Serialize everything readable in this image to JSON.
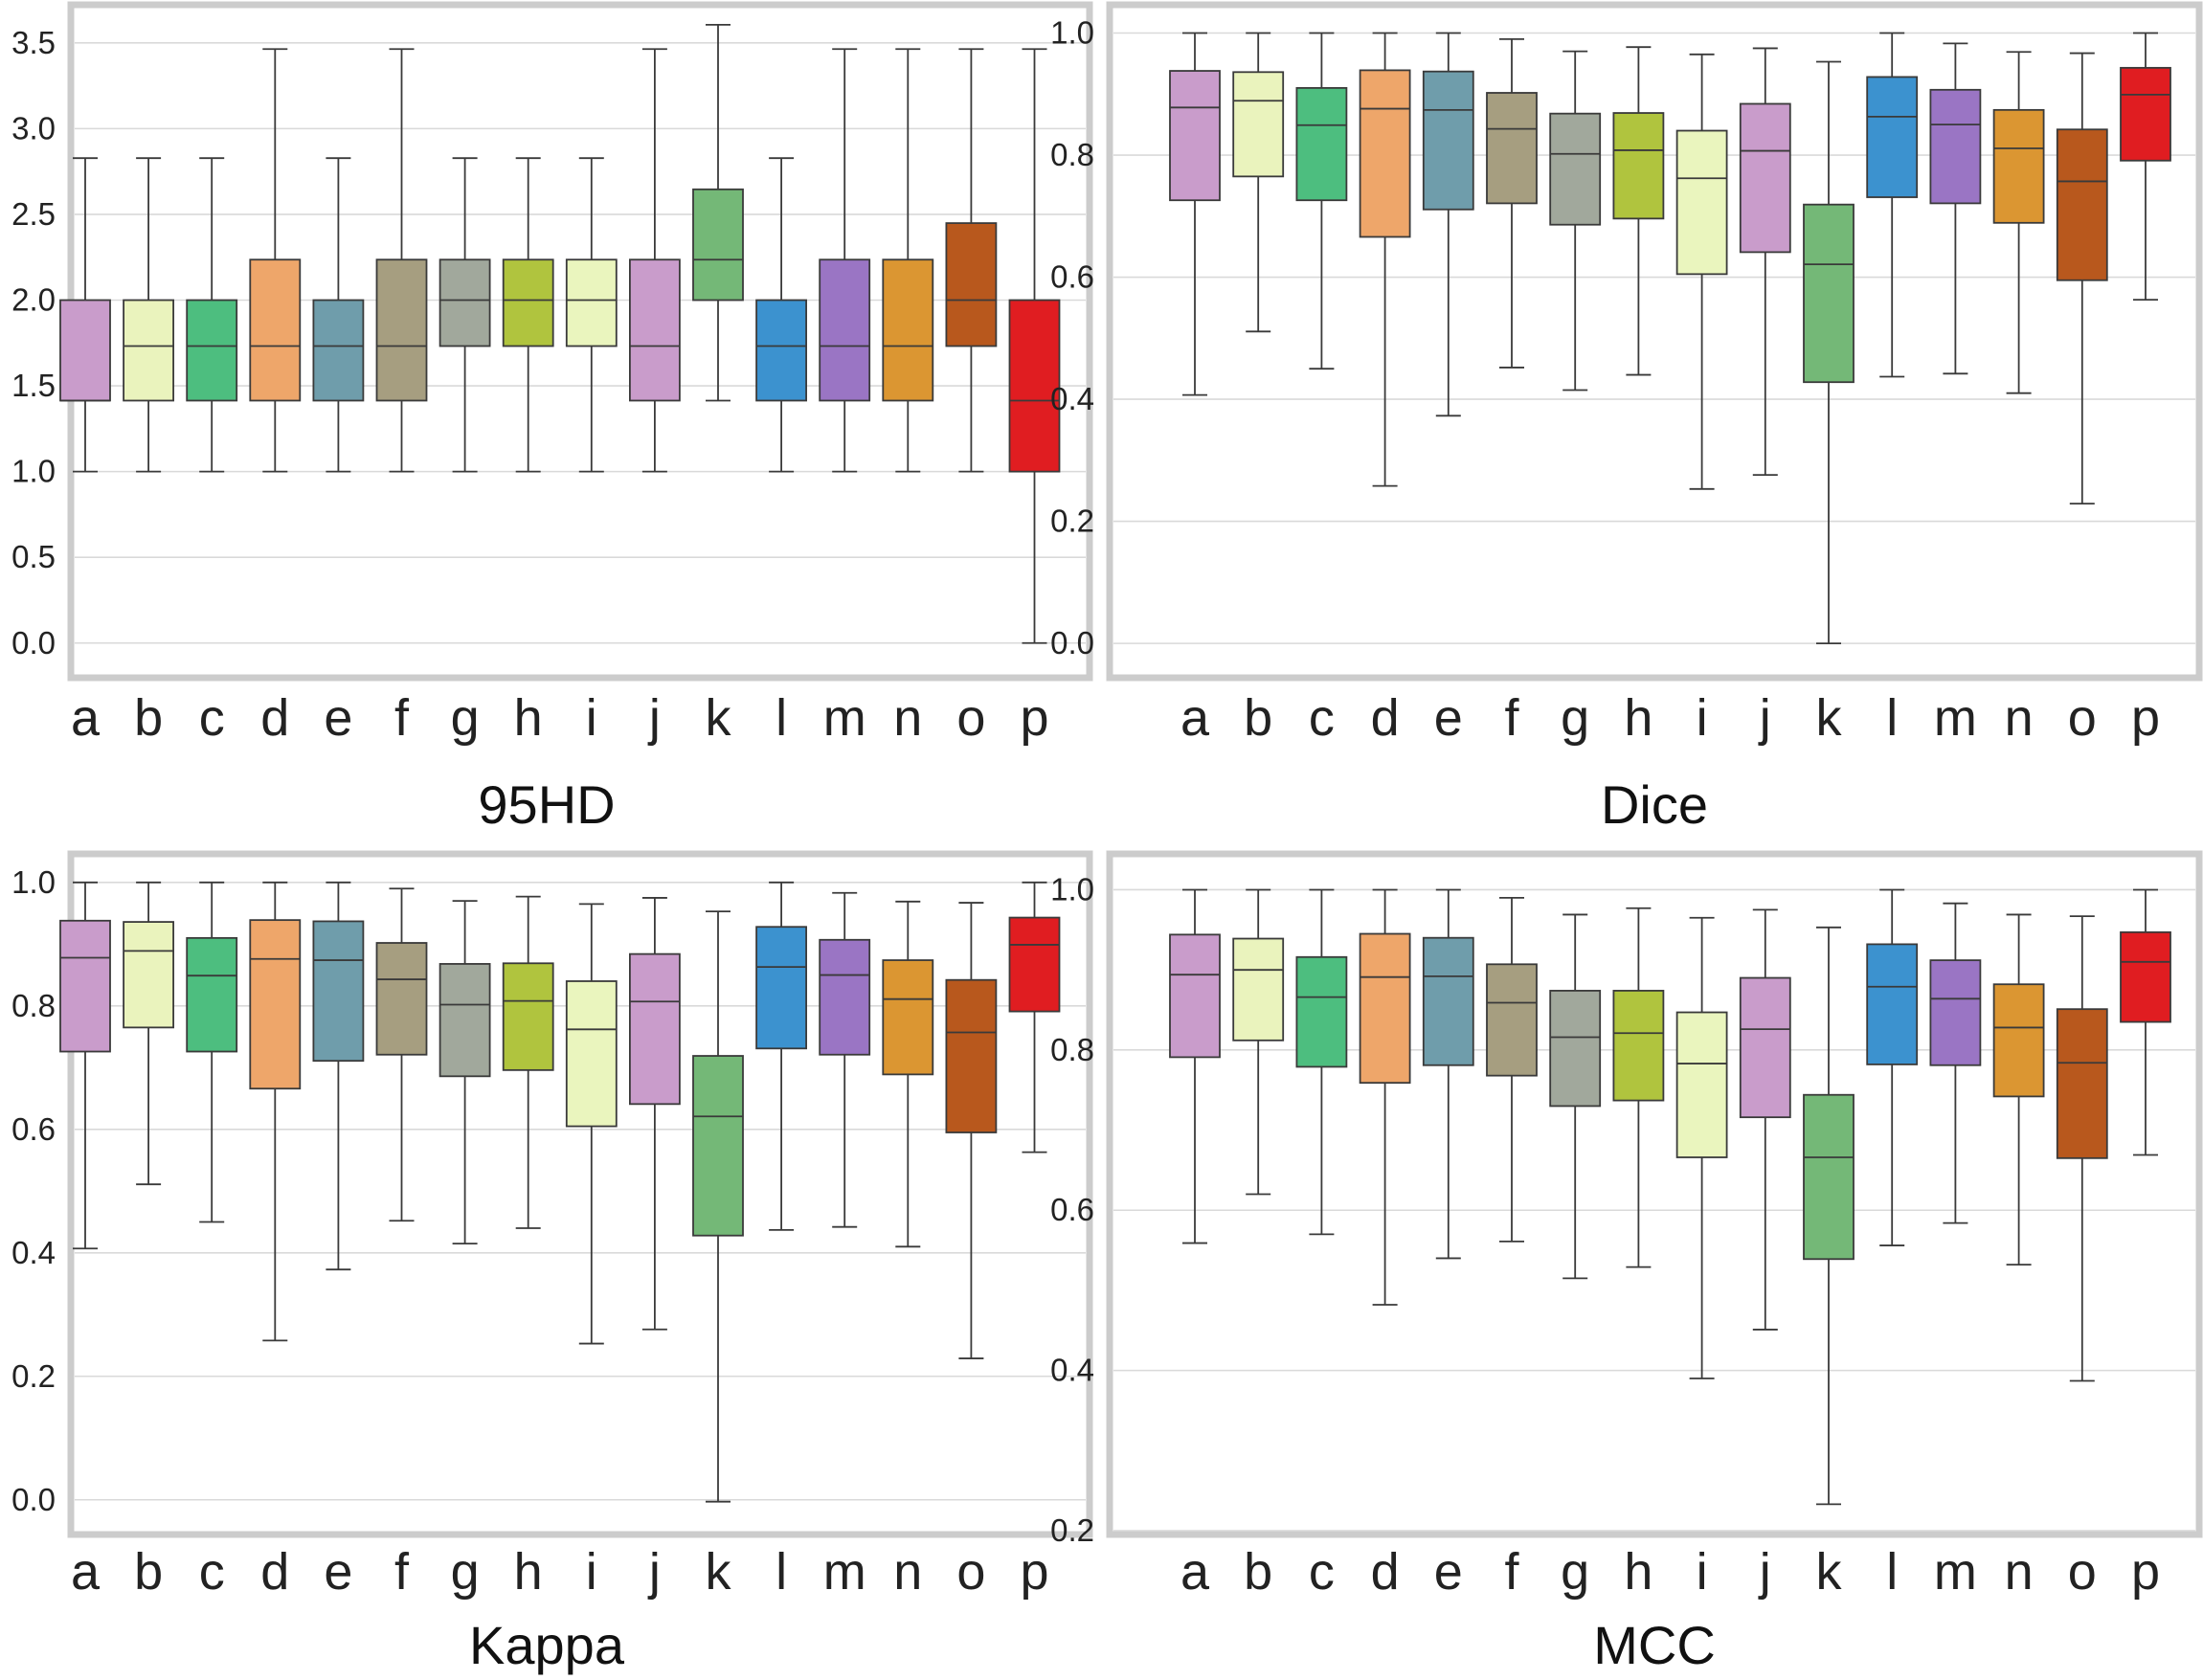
{
  "figure": {
    "categories": [
      "a",
      "b",
      "c",
      "d",
      "e",
      "f",
      "g",
      "h",
      "i",
      "j",
      "k",
      "l",
      "m",
      "n",
      "o",
      "p"
    ],
    "colors": [
      "#c99ccb",
      "#eaf3bd",
      "#4dbe7f",
      "#eea66a",
      "#6f9dab",
      "#a69e80",
      "#a1a89c",
      "#b0c43e",
      "#eaf5be",
      "#c99ccb",
      "#74b877",
      "#3c92cf",
      "#9a75c4",
      "#db9632",
      "#b8581d",
      "#e01d21"
    ],
    "box_edge_color": "#3a3a3a",
    "grid_color": "#d9d9d9",
    "frame_color": "#cccccc"
  },
  "chart_data": [
    {
      "type": "box",
      "title": "95HD",
      "ylim": [
        -0.18,
        3.7
      ],
      "yticks": [
        0.0,
        0.5,
        1.0,
        1.5,
        2.0,
        2.5,
        3.0,
        3.5
      ],
      "ytick_labels": [
        "0.0",
        "0.5",
        "1.0",
        "1.5",
        "2.0",
        "2.5",
        "3.0",
        "3.5"
      ],
      "grid": true,
      "boxes": [
        {
          "min": 1.0,
          "q1": 1.414,
          "median": 1.414,
          "q3": 2.0,
          "max": 2.828
        },
        {
          "min": 1.0,
          "q1": 1.414,
          "median": 1.732,
          "q3": 2.0,
          "max": 2.828
        },
        {
          "min": 1.0,
          "q1": 1.414,
          "median": 1.732,
          "q3": 2.0,
          "max": 2.828
        },
        {
          "min": 1.0,
          "q1": 1.414,
          "median": 1.732,
          "q3": 2.236,
          "max": 3.464
        },
        {
          "min": 1.0,
          "q1": 1.414,
          "median": 1.732,
          "q3": 2.0,
          "max": 2.828
        },
        {
          "min": 1.0,
          "q1": 1.414,
          "median": 1.732,
          "q3": 2.236,
          "max": 3.464
        },
        {
          "min": 1.0,
          "q1": 1.732,
          "median": 2.0,
          "q3": 2.236,
          "max": 2.828
        },
        {
          "min": 1.0,
          "q1": 1.732,
          "median": 2.0,
          "q3": 2.236,
          "max": 2.828
        },
        {
          "min": 1.0,
          "q1": 1.732,
          "median": 2.0,
          "q3": 2.236,
          "max": 2.828
        },
        {
          "min": 1.0,
          "q1": 1.414,
          "median": 1.732,
          "q3": 2.236,
          "max": 3.464
        },
        {
          "min": 1.414,
          "q1": 2.0,
          "median": 2.236,
          "q3": 2.646,
          "max": 3.606
        },
        {
          "min": 1.0,
          "q1": 1.414,
          "median": 1.732,
          "q3": 2.0,
          "max": 2.828
        },
        {
          "min": 1.0,
          "q1": 1.414,
          "median": 1.732,
          "q3": 2.236,
          "max": 3.464
        },
        {
          "min": 1.0,
          "q1": 1.414,
          "median": 1.732,
          "q3": 2.236,
          "max": 3.464
        },
        {
          "min": 1.0,
          "q1": 1.732,
          "median": 2.0,
          "q3": 2.449,
          "max": 3.464
        },
        {
          "min": 0.0,
          "q1": 1.0,
          "median": 1.414,
          "q3": 2.0,
          "max": 3.464
        }
      ]
    },
    {
      "type": "box",
      "title": "Dice",
      "ylim": [
        -0.05,
        1.04
      ],
      "yticks": [
        0.0,
        0.2,
        0.4,
        0.6,
        0.8,
        1.0
      ],
      "ytick_labels": [
        "0.0",
        "0.2",
        "0.4",
        "0.6",
        "0.8",
        "1.0"
      ],
      "grid": true,
      "boxes": [
        {
          "min": 0.407,
          "q1": 0.726,
          "median": 0.878,
          "q3": 0.938,
          "max": 1.0
        },
        {
          "min": 0.511,
          "q1": 0.765,
          "median": 0.889,
          "q3": 0.936,
          "max": 1.0
        },
        {
          "min": 0.45,
          "q1": 0.726,
          "median": 0.849,
          "q3": 0.91,
          "max": 1.0
        },
        {
          "min": 0.258,
          "q1": 0.666,
          "median": 0.876,
          "q3": 0.939,
          "max": 1.0
        },
        {
          "min": 0.373,
          "q1": 0.711,
          "median": 0.874,
          "q3": 0.937,
          "max": 1.0
        },
        {
          "min": 0.452,
          "q1": 0.721,
          "median": 0.843,
          "q3": 0.902,
          "max": 0.99
        },
        {
          "min": 0.415,
          "q1": 0.686,
          "median": 0.802,
          "q3": 0.868,
          "max": 0.97
        },
        {
          "min": 0.44,
          "q1": 0.696,
          "median": 0.808,
          "q3": 0.869,
          "max": 0.977
        },
        {
          "min": 0.253,
          "q1": 0.605,
          "median": 0.762,
          "q3": 0.84,
          "max": 0.965
        },
        {
          "min": 0.276,
          "q1": 0.641,
          "median": 0.807,
          "q3": 0.884,
          "max": 0.975
        },
        {
          "min": 0.0,
          "q1": 0.428,
          "median": 0.621,
          "q3": 0.719,
          "max": 0.953
        },
        {
          "min": 0.437,
          "q1": 0.731,
          "median": 0.863,
          "q3": 0.928,
          "max": 1.0
        },
        {
          "min": 0.442,
          "q1": 0.721,
          "median": 0.85,
          "q3": 0.907,
          "max": 0.983
        },
        {
          "min": 0.41,
          "q1": 0.689,
          "median": 0.811,
          "q3": 0.874,
          "max": 0.969
        },
        {
          "min": 0.229,
          "q1": 0.595,
          "median": 0.757,
          "q3": 0.842,
          "max": 0.967
        },
        {
          "min": 0.563,
          "q1": 0.791,
          "median": 0.899,
          "q3": 0.943,
          "max": 1.0
        }
      ]
    },
    {
      "type": "box",
      "title": "Kappa",
      "ylim": [
        -0.05,
        1.04
      ],
      "yticks": [
        0.0,
        0.2,
        0.4,
        0.6,
        0.8,
        1.0
      ],
      "ytick_labels": [
        "0.0",
        "0.2",
        "0.4",
        "0.6",
        "0.8",
        "1.0"
      ],
      "grid": true,
      "boxes": [
        {
          "min": 0.407,
          "q1": 0.726,
          "median": 0.878,
          "q3": 0.938,
          "max": 1.0
        },
        {
          "min": 0.511,
          "q1": 0.765,
          "median": 0.889,
          "q3": 0.936,
          "max": 1.0
        },
        {
          "min": 0.45,
          "q1": 0.726,
          "median": 0.849,
          "q3": 0.91,
          "max": 1.0
        },
        {
          "min": 0.258,
          "q1": 0.666,
          "median": 0.876,
          "q3": 0.939,
          "max": 1.0
        },
        {
          "min": 0.373,
          "q1": 0.711,
          "median": 0.874,
          "q3": 0.937,
          "max": 1.0
        },
        {
          "min": 0.452,
          "q1": 0.721,
          "median": 0.843,
          "q3": 0.902,
          "max": 0.99
        },
        {
          "min": 0.415,
          "q1": 0.686,
          "median": 0.802,
          "q3": 0.868,
          "max": 0.97
        },
        {
          "min": 0.44,
          "q1": 0.696,
          "median": 0.808,
          "q3": 0.869,
          "max": 0.977
        },
        {
          "min": 0.253,
          "q1": 0.605,
          "median": 0.762,
          "q3": 0.84,
          "max": 0.965
        },
        {
          "min": 0.276,
          "q1": 0.641,
          "median": 0.807,
          "q3": 0.884,
          "max": 0.975
        },
        {
          "min": -0.003,
          "q1": 0.428,
          "median": 0.621,
          "q3": 0.719,
          "max": 0.953
        },
        {
          "min": 0.437,
          "q1": 0.731,
          "median": 0.863,
          "q3": 0.928,
          "max": 1.0
        },
        {
          "min": 0.442,
          "q1": 0.721,
          "median": 0.85,
          "q3": 0.907,
          "max": 0.983
        },
        {
          "min": 0.41,
          "q1": 0.689,
          "median": 0.811,
          "q3": 0.874,
          "max": 0.969
        },
        {
          "min": 0.229,
          "q1": 0.595,
          "median": 0.757,
          "q3": 0.842,
          "max": 0.967
        },
        {
          "min": 0.563,
          "q1": 0.791,
          "median": 0.899,
          "q3": 0.943,
          "max": 1.0
        }
      ]
    },
    {
      "type": "box",
      "title": "MCC",
      "ylim": [
        0.2,
        1.04
      ],
      "yticks": [
        0.2,
        0.4,
        0.6,
        0.8,
        1.0
      ],
      "ytick_labels": [
        "0.2",
        "0.4",
        "0.6",
        "0.8",
        "1.0"
      ],
      "grid": true,
      "boxes": [
        {
          "min": 0.559,
          "q1": 0.791,
          "median": 0.894,
          "q3": 0.944,
          "max": 1.0
        },
        {
          "min": 0.62,
          "q1": 0.812,
          "median": 0.9,
          "q3": 0.939,
          "max": 1.0
        },
        {
          "min": 0.57,
          "q1": 0.779,
          "median": 0.866,
          "q3": 0.916,
          "max": 1.0
        },
        {
          "min": 0.482,
          "q1": 0.759,
          "median": 0.891,
          "q3": 0.945,
          "max": 1.0
        },
        {
          "min": 0.54,
          "q1": 0.781,
          "median": 0.892,
          "q3": 0.94,
          "max": 1.0
        },
        {
          "min": 0.561,
          "q1": 0.768,
          "median": 0.859,
          "q3": 0.907,
          "max": 0.99
        },
        {
          "min": 0.515,
          "q1": 0.73,
          "median": 0.816,
          "q3": 0.874,
          "max": 0.969
        },
        {
          "min": 0.529,
          "q1": 0.737,
          "median": 0.821,
          "q3": 0.874,
          "max": 0.977
        },
        {
          "min": 0.39,
          "q1": 0.666,
          "median": 0.783,
          "q3": 0.847,
          "max": 0.965
        },
        {
          "min": 0.451,
          "q1": 0.716,
          "median": 0.826,
          "q3": 0.89,
          "max": 0.975
        },
        {
          "min": 0.233,
          "q1": 0.539,
          "median": 0.666,
          "q3": 0.744,
          "max": 0.953
        },
        {
          "min": 0.556,
          "q1": 0.782,
          "median": 0.879,
          "q3": 0.932,
          "max": 1.0
        },
        {
          "min": 0.584,
          "q1": 0.781,
          "median": 0.864,
          "q3": 0.912,
          "max": 0.983
        },
        {
          "min": 0.532,
          "q1": 0.742,
          "median": 0.828,
          "q3": 0.882,
          "max": 0.969
        },
        {
          "min": 0.387,
          "q1": 0.665,
          "median": 0.784,
          "q3": 0.851,
          "max": 0.967
        },
        {
          "min": 0.669,
          "q1": 0.835,
          "median": 0.91,
          "q3": 0.947,
          "max": 1.0
        }
      ]
    }
  ]
}
